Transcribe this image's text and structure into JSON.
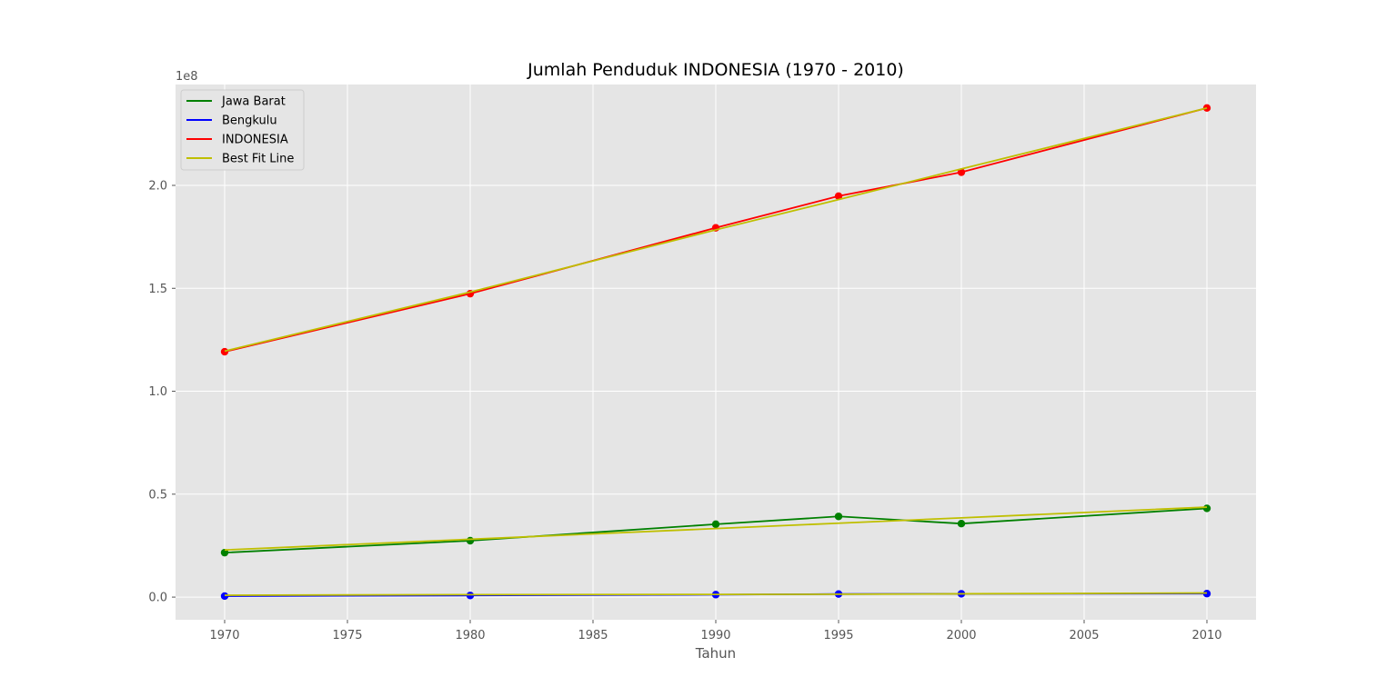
{
  "chart_data": {
    "type": "line",
    "title": "Jumlah Penduduk INDONESIA (1970 - 2010)",
    "xlabel": "Tahun",
    "ylabel": "",
    "y_offset_label": "1e8",
    "xlim": [
      1968,
      2012
    ],
    "ylim": [
      -0.11,
      2.49
    ],
    "y_units_note": "1e8",
    "xticks": [
      1970,
      1975,
      1980,
      1985,
      1990,
      1995,
      2000,
      2005,
      2010
    ],
    "yticks": [
      0.0,
      0.5,
      1.0,
      1.5,
      2.0
    ],
    "ytick_labels": [
      "0.0",
      "0.5",
      "1.0",
      "1.5",
      "2.0"
    ],
    "grid": true,
    "legend_position": "top-left",
    "x": [
      1970,
      1980,
      1990,
      1995,
      2000,
      2010
    ],
    "series": [
      {
        "name": "Jawa Barat",
        "color": "#008000",
        "values": [
          0.216,
          0.274,
          0.354,
          0.392,
          0.357,
          0.431
        ]
      },
      {
        "name": "Bengkulu",
        "color": "#0000ff",
        "values": [
          0.005,
          0.008,
          0.012,
          0.015,
          0.016,
          0.017
        ]
      },
      {
        "name": "INDONESIA",
        "color": "#ff0000",
        "values": [
          1.192,
          1.474,
          1.794,
          1.948,
          2.064,
          2.376
        ]
      },
      {
        "name": "Best Fit Line",
        "color": "#bfbf00",
        "fits": [
          {
            "x": [
              1970,
              1980,
              1990,
              1995,
              2000,
              2010
            ],
            "values": [
              1.195,
              1.482,
              1.784,
              1.931,
              2.08,
              2.376
            ]
          },
          {
            "x": [
              1970,
              1980,
              1990,
              1995,
              2000,
              2010
            ],
            "values": [
              0.229,
              0.281,
              0.333,
              0.359,
              0.385,
              0.437
            ]
          },
          {
            "x": [
              1970,
              1980,
              1990,
              1995,
              2000,
              2010
            ],
            "values": [
              0.009,
              0.012,
              0.013,
              0.014,
              0.016,
              0.02
            ]
          }
        ]
      }
    ]
  }
}
